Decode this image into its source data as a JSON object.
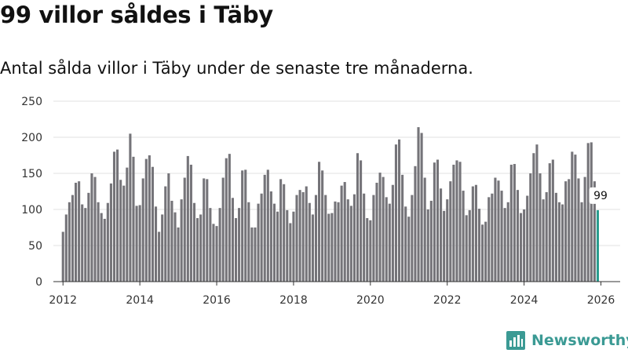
{
  "header": {
    "title": "99 villor såldes i Täby",
    "subtitle": "Antal sålda villor i Täby under de senaste tre månaderna."
  },
  "brand": {
    "name": "Newsworthy",
    "icon": "newsworthy-logo-icon"
  },
  "colors": {
    "bar": "#757479",
    "highlight": "#2a9d8f",
    "grid": "#e2e2e2",
    "axis": "#333333",
    "brand": "#3b9a94"
  },
  "chart_data": {
    "type": "bar",
    "title": "99 villor såldes i Täby",
    "subtitle": "Antal sålda villor i Täby under de senaste tre månaderna.",
    "xlabel": "",
    "ylabel": "",
    "ylim": [
      0,
      250
    ],
    "yticks": [
      0,
      50,
      100,
      150,
      200,
      250
    ],
    "xlim": [
      2011.75,
      2026.5
    ],
    "xticks": [
      2012,
      2014,
      2016,
      2018,
      2020,
      2022,
      2024,
      2026
    ],
    "grid": true,
    "start": "2012-01",
    "frequency": "monthly",
    "values": [
      69,
      93,
      110,
      120,
      137,
      139,
      107,
      102,
      123,
      150,
      145,
      110,
      95,
      87,
      109,
      136,
      180,
      183,
      141,
      133,
      158,
      205,
      173,
      105,
      106,
      143,
      170,
      175,
      159,
      104,
      69,
      93,
      132,
      150,
      112,
      96,
      75,
      114,
      144,
      174,
      162,
      109,
      88,
      93,
      143,
      142,
      102,
      80,
      77,
      102,
      144,
      171,
      177,
      116,
      88,
      102,
      154,
      155,
      110,
      75,
      75,
      108,
      122,
      148,
      155,
      125,
      108,
      97,
      142,
      135,
      99,
      81,
      97,
      120,
      127,
      124,
      132,
      109,
      93,
      120,
      166,
      154,
      120,
      94,
      95,
      111,
      110,
      133,
      138,
      114,
      105,
      121,
      178,
      168,
      122,
      88,
      85,
      120,
      137,
      151,
      145,
      117,
      108,
      134,
      190,
      197,
      148,
      104,
      90,
      120,
      160,
      214,
      206,
      144,
      100,
      112,
      165,
      169,
      129,
      98,
      114,
      139,
      162,
      168,
      166,
      126,
      92,
      99,
      132,
      134,
      101,
      79,
      83,
      117,
      122,
      144,
      140,
      126,
      102,
      110,
      162,
      163,
      127,
      95,
      100,
      119,
      150,
      178,
      190,
      150,
      114,
      124,
      164,
      169,
      123,
      110,
      107,
      139,
      142,
      180,
      176,
      143,
      110,
      145,
      192,
      193,
      139,
      99
    ],
    "annotations": [
      {
        "label": "99",
        "value": 99,
        "date": "2026-01"
      }
    ]
  }
}
